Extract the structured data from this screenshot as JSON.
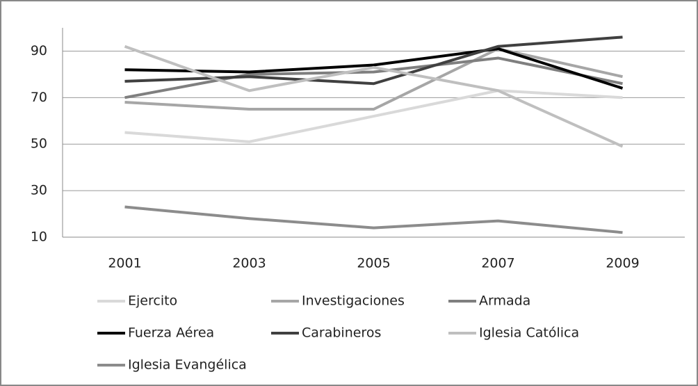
{
  "chart_data": {
    "type": "line",
    "categories": [
      "2001",
      "2003",
      "2005",
      "2007",
      "2009"
    ],
    "series": [
      {
        "name": "Ejercito",
        "color": "#d9d9d9",
        "values": [
          55,
          51,
          62,
          73,
          70
        ]
      },
      {
        "name": "Investigaciones",
        "color": "#a6a6a6",
        "values": [
          68,
          65,
          65,
          91,
          79
        ]
      },
      {
        "name": "Armada",
        "color": "#7f7f7f",
        "values": [
          70,
          80,
          81,
          87,
          76
        ]
      },
      {
        "name": "Fuerza Aérea",
        "color": "#000000",
        "values": [
          82,
          81,
          84,
          91,
          74
        ]
      },
      {
        "name": "Carabineros",
        "color": "#404040",
        "values": [
          77,
          79,
          76,
          92,
          96
        ]
      },
      {
        "name": "Iglesia Católica",
        "color": "#bfbfbf",
        "values": [
          92,
          73,
          83,
          73,
          49
        ]
      },
      {
        "name": "Iglesia Evangélica",
        "color": "#8c8c8c",
        "values": [
          23,
          18,
          14,
          17,
          12
        ]
      }
    ],
    "ylim": [
      10,
      100
    ],
    "yticks": [
      10,
      30,
      50,
      70,
      90
    ],
    "grid": true,
    "legend": "bottom"
  }
}
